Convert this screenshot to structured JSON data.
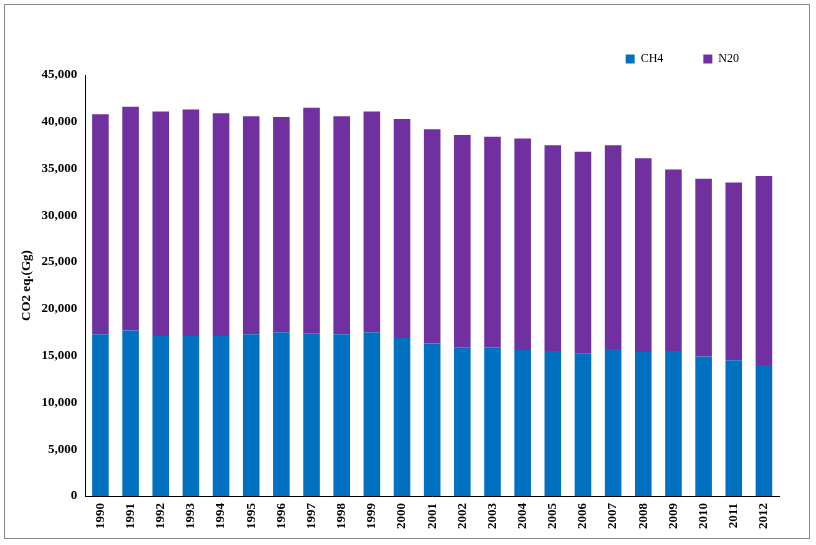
{
  "chart_data": {
    "type": "bar",
    "y_label": "CO2 eq.(Gg)",
    "categories": [
      "1990",
      "1991",
      "1992",
      "1993",
      "1994",
      "1995",
      "1996",
      "1997",
      "1998",
      "1999",
      "2000",
      "2001",
      "2002",
      "2003",
      "2004",
      "2005",
      "2006",
      "2007",
      "2008",
      "2009",
      "2010",
      "2011",
      "2012"
    ],
    "series": [
      {
        "name": "CH4",
        "color": "#0070c0",
        "values": [
          17300,
          17700,
          17100,
          17100,
          17100,
          17300,
          17500,
          17400,
          17300,
          17500,
          16900,
          16300,
          15900,
          15900,
          15600,
          15500,
          15200,
          15700,
          15400,
          15500,
          14900,
          14500,
          14000
        ]
      },
      {
        "name": "N20",
        "color": "#7030a0",
        "values": [
          23500,
          23900,
          24000,
          24200,
          23800,
          23300,
          23000,
          24100,
          23300,
          23600,
          23400,
          22900,
          22700,
          22500,
          22600,
          22000,
          21600,
          21800,
          20700,
          19400,
          19000,
          19000,
          20200
        ]
      }
    ],
    "stacked": true,
    "ylim": [
      0,
      45000
    ],
    "yticks": [
      0,
      {
        "value": 5000,
        "label": "5,000"
      },
      {
        "value": 10000,
        "label": "10,000"
      },
      {
        "value": 15000,
        "label": "15,000"
      },
      {
        "value": 20000,
        "label": "20,000"
      },
      {
        "value": 25000,
        "label": "25,000"
      },
      {
        "value": 30000,
        "label": "30,000"
      },
      {
        "value": 35000,
        "label": "35,000"
      },
      {
        "value": 40000,
        "label": "40,000"
      },
      {
        "value": 45000,
        "label": "45,000"
      }
    ],
    "grid": false,
    "legend": "top-right"
  }
}
